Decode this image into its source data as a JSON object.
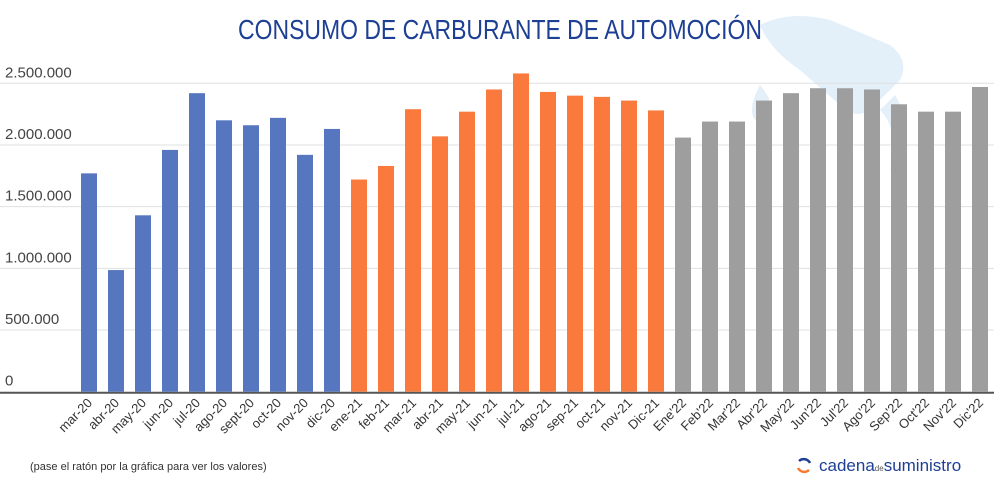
{
  "chart_data": {
    "type": "bar",
    "title": "CONSUMO DE CARBURANTE DE AUTOMOCIÓN",
    "categories": [
      "mar-20",
      "abr-20",
      "may-20",
      "jun-20",
      "jul-20",
      "ago-20",
      "sept-20",
      "oct-20",
      "nov-20",
      "dic-20",
      "ene-21",
      "feb-21",
      "mar-21",
      "abr-21",
      "may-21",
      "jun-21",
      "jul-21",
      "ago-21",
      "sep-21",
      "oct-21",
      "nov-21",
      "Dic-21",
      "Ene'22",
      "Feb'22",
      "Mar'22",
      "Abr'22",
      "May'22",
      "Jun'22",
      "Jul'22",
      "Ago'22",
      "Sep'22",
      "Oct'22",
      "Nov'22",
      "Dic'22"
    ],
    "values": [
      1770000,
      986000,
      1430000,
      1960000,
      2420000,
      2200000,
      2160000,
      2220000,
      1920000,
      2130000,
      1720000,
      1830000,
      2290000,
      2070000,
      2270000,
      2450000,
      2580000,
      2430000,
      2400000,
      2390000,
      2360000,
      2280000,
      2060000,
      2190000,
      2190000,
      2360000,
      2420000,
      2460000,
      2460000,
      2450000,
      2330000,
      2270000,
      2270000,
      2470000
    ],
    "bar_colors_by_year": {
      "2020": "#5677c0",
      "2021": "#fa7a3e",
      "2022": "#9e9e9e"
    },
    "ylim": [
      0,
      2500000
    ],
    "yticks": [
      "0",
      "500.000",
      "1.000.000",
      "1.500.000",
      "2.000.000",
      "2.500.000"
    ],
    "grid": true,
    "legend": "none"
  },
  "note": "(pase el ratón por la gráfica para ver los valores)",
  "logo": {
    "name_part1": "cadena",
    "name_part2": "de",
    "name_part3": "suministro"
  }
}
